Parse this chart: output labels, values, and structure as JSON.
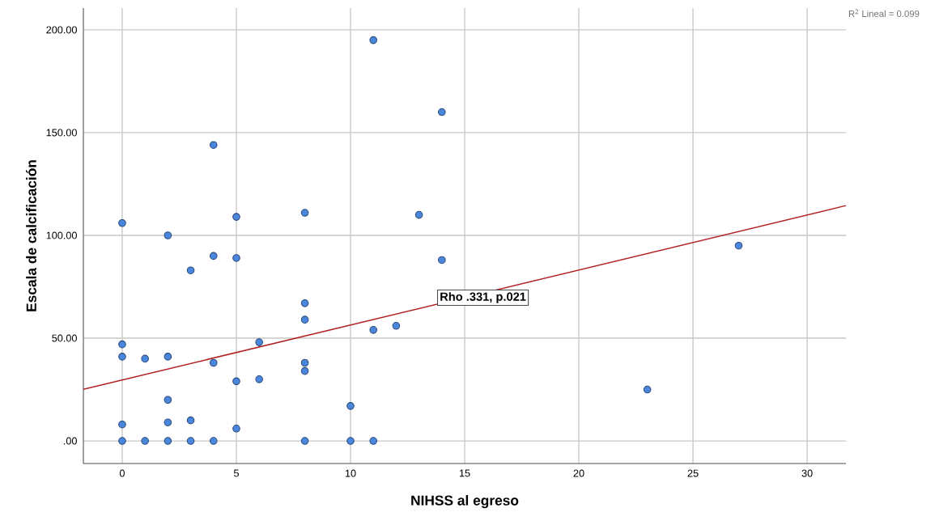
{
  "chart_data": {
    "type": "scatter",
    "xlabel": "NIHSS al egreso",
    "ylabel": "Escala de calcificación",
    "series": [
      {
        "color": "#4a86dc",
        "marker": "circle",
        "x": [
          0,
          0,
          0,
          0,
          0,
          1,
          1,
          2,
          2,
          2,
          2,
          2,
          3,
          3,
          3,
          4,
          4,
          4,
          4,
          5,
          5,
          5,
          5,
          6,
          6,
          8,
          8,
          8,
          8,
          8,
          8,
          10,
          10,
          11,
          11,
          11,
          12,
          13,
          14,
          14,
          23,
          27
        ],
        "values": [
          106,
          47,
          41,
          8,
          0,
          40,
          0,
          100,
          41,
          20,
          9,
          0,
          83,
          10,
          0,
          144,
          90,
          38,
          0,
          109,
          89,
          29,
          6,
          48,
          30,
          111,
          67,
          59,
          38,
          34,
          0,
          17,
          0,
          195,
          54,
          0,
          56,
          110,
          160,
          88,
          25,
          95
        ]
      },
      {
        "type": "line",
        "marker": "none",
        "color": "#b22222",
        "x": [
          -1.7,
          31.7
        ],
        "values": [
          25.1,
          114.5
        ]
      }
    ],
    "xlim": [
      -1.7,
      31.7
    ],
    "ylim": [
      -11,
      210.6
    ],
    "xticks": [
      0,
      5,
      10,
      15,
      20,
      25,
      30
    ],
    "yticks": [
      {
        "value": 0,
        "label": ".00"
      },
      {
        "value": 50,
        "label": "50.00"
      },
      {
        "value": 100,
        "label": "100.00"
      },
      {
        "value": 150,
        "label": "150.00"
      },
      {
        "value": 200,
        "label": "200.00"
      }
    ],
    "grid": true,
    "line_style": "solid",
    "annotations": [
      {
        "text": "Rho .331, p.021",
        "x": 15.8,
        "y": 69.7
      },
      "R$^{2}$ Lineal = 0.099"
    ]
  }
}
